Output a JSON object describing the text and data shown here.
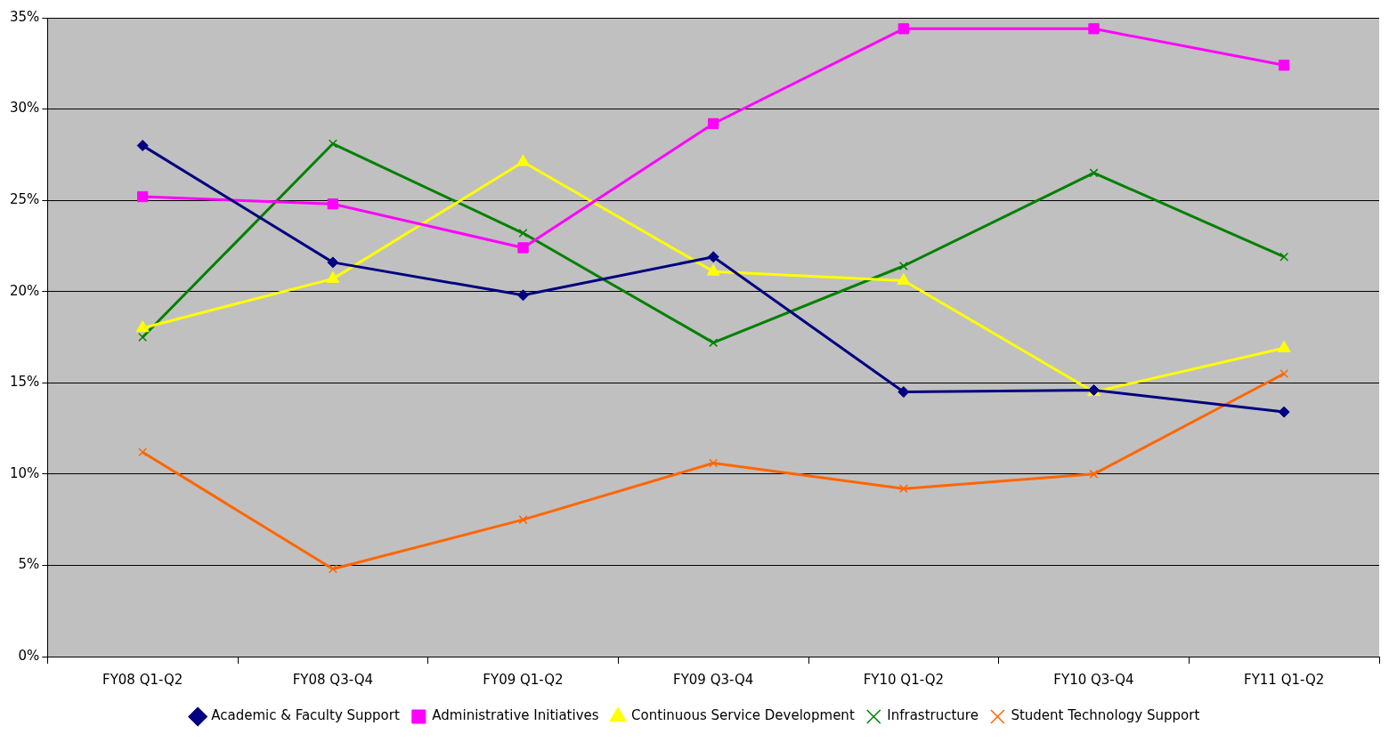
{
  "chart_data": {
    "type": "line",
    "categories": [
      "FY08 Q1-Q2",
      "FY08 Q3-Q4",
      "FY09 Q1-Q2",
      "FY09 Q3-Q4",
      "FY10 Q1-Q2",
      "FY10 Q3-Q4",
      "FY11 Q1-Q2"
    ],
    "series": [
      {
        "name": "Academic & Faculty Support",
        "color": "#000080",
        "marker": "diamond",
        "values": [
          28.0,
          21.6,
          19.8,
          21.9,
          14.5,
          14.6,
          13.4
        ]
      },
      {
        "name": "Administrative Initiatives",
        "color": "#ff00ff",
        "marker": "square",
        "values": [
          25.2,
          24.8,
          22.4,
          29.2,
          34.4,
          34.4,
          32.4
        ]
      },
      {
        "name": "Continuous Service Development",
        "color": "#ffff00",
        "marker": "triangle",
        "values": [
          18.0,
          20.7,
          27.1,
          21.1,
          20.6,
          14.5,
          16.9
        ]
      },
      {
        "name": "Infrastructure",
        "color": "#008000",
        "marker": "cross",
        "values": [
          17.5,
          28.1,
          23.2,
          17.2,
          21.4,
          26.5,
          21.9
        ]
      },
      {
        "name": "Student Technology Support",
        "color": "#ff6600",
        "marker": "cross",
        "values": [
          11.2,
          4.8,
          7.5,
          10.6,
          9.2,
          10.0,
          15.5
        ]
      }
    ],
    "ylim": [
      0,
      35
    ],
    "yticks": [
      {
        "value": 0,
        "label": "0%"
      },
      {
        "value": 5,
        "label": "5%"
      },
      {
        "value": 10,
        "label": "10%"
      },
      {
        "value": 15,
        "label": "15%"
      },
      {
        "value": 20,
        "label": "20%"
      },
      {
        "value": 25,
        "label": "25%"
      },
      {
        "value": 30,
        "label": "30%"
      },
      {
        "value": 35,
        "label": "35%"
      }
    ],
    "grid": "y",
    "legend": "bottom",
    "line_style": "solid"
  }
}
